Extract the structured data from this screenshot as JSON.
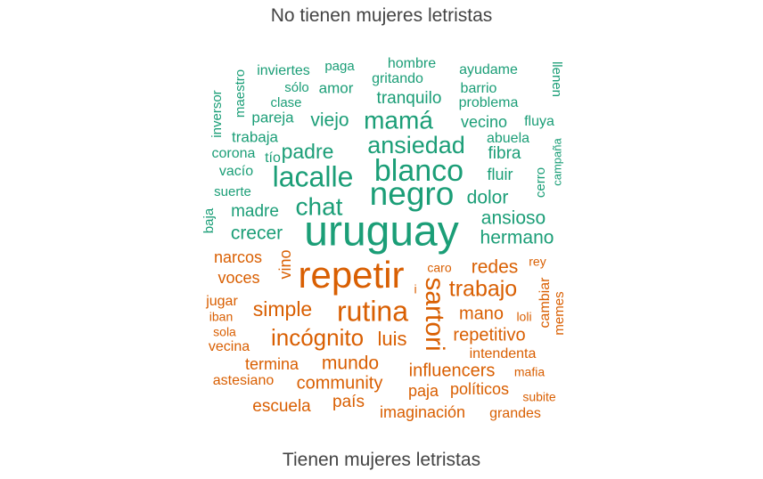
{
  "chart_data": {
    "type": "wordcloud",
    "title_top": "No tienen mujeres letristas",
    "title_bottom": "Tienen mujeres letristas",
    "colors": {
      "top_group": "#1B9E77",
      "bottom_group": "#D95F02"
    },
    "groups": [
      {
        "name": "No tienen mujeres letristas",
        "color": "#1B9E77",
        "words": [
          {
            "word": "uruguay",
            "weight": 10
          },
          {
            "word": "negro",
            "weight": 8
          },
          {
            "word": "blanco",
            "weight": 7.5
          },
          {
            "word": "lacalle",
            "weight": 7
          },
          {
            "word": "chat",
            "weight": 6
          },
          {
            "word": "mamá",
            "weight": 6
          },
          {
            "word": "ansiedad",
            "weight": 5.8
          },
          {
            "word": "padre",
            "weight": 5
          },
          {
            "word": "dolor",
            "weight": 4
          },
          {
            "word": "viejo",
            "weight": 4
          },
          {
            "word": "tranquilo",
            "weight": 4
          },
          {
            "word": "fibra",
            "weight": 3.8
          },
          {
            "word": "fluir",
            "weight": 3.7
          },
          {
            "word": "ansioso",
            "weight": 4
          },
          {
            "word": "hermano",
            "weight": 4
          },
          {
            "word": "crecer",
            "weight": 4
          },
          {
            "word": "madre",
            "weight": 3.7
          },
          {
            "word": "vecino",
            "weight": 3.6
          },
          {
            "word": "barrio",
            "weight": 3
          },
          {
            "word": "gritando",
            "weight": 3
          },
          {
            "word": "amor",
            "weight": 3.2
          },
          {
            "word": "ayudame",
            "weight": 3
          },
          {
            "word": "hombre",
            "weight": 3
          },
          {
            "word": "paga",
            "weight": 3
          },
          {
            "word": "inviertes",
            "weight": 3
          },
          {
            "word": "sólo",
            "weight": 3
          },
          {
            "word": "clase",
            "weight": 3
          },
          {
            "word": "problema",
            "weight": 3
          },
          {
            "word": "pareja",
            "weight": 3
          },
          {
            "word": "abuela",
            "weight": 3
          },
          {
            "word": "fluya",
            "weight": 3
          },
          {
            "word": "trabaja",
            "weight": 3
          },
          {
            "word": "corona",
            "weight": 3
          },
          {
            "word": "tío",
            "weight": 3
          },
          {
            "word": "vacío",
            "weight": 3
          },
          {
            "word": "suerte",
            "weight": 3
          },
          {
            "word": "baja",
            "weight": 3
          },
          {
            "word": "maestro",
            "weight": 3
          },
          {
            "word": "inversor",
            "weight": 3
          },
          {
            "word": "llenen",
            "weight": 3
          },
          {
            "word": "campaña",
            "weight": 2.8
          },
          {
            "word": "cerro",
            "weight": 3
          }
        ]
      },
      {
        "name": "Tienen mujeres letristas",
        "color": "#D95F02",
        "words": [
          {
            "word": "repetir",
            "weight": 10
          },
          {
            "word": "rutina",
            "weight": 7
          },
          {
            "word": "sartori",
            "weight": 7
          },
          {
            "word": "incógnito",
            "weight": 5.5
          },
          {
            "word": "trabajo",
            "weight": 5
          },
          {
            "word": "simple",
            "weight": 4.8
          },
          {
            "word": "luis",
            "weight": 4.8
          },
          {
            "word": "mano",
            "weight": 4
          },
          {
            "word": "redes",
            "weight": 4
          },
          {
            "word": "mundo",
            "weight": 4
          },
          {
            "word": "repetitivo",
            "weight": 4
          },
          {
            "word": "influencers",
            "weight": 4
          },
          {
            "word": "community",
            "weight": 4
          },
          {
            "word": "termina",
            "weight": 3.6
          },
          {
            "word": "narcos",
            "weight": 3.5
          },
          {
            "word": "voces",
            "weight": 3.5
          },
          {
            "word": "vino",
            "weight": 3.5
          },
          {
            "word": "escuela",
            "weight": 3.5
          },
          {
            "word": "país",
            "weight": 3.5
          },
          {
            "word": "imaginación",
            "weight": 3.5
          },
          {
            "word": "paja",
            "weight": 3.5
          },
          {
            "word": "políticos",
            "weight": 3.5
          },
          {
            "word": "intendenta",
            "weight": 3
          },
          {
            "word": "vecina",
            "weight": 3
          },
          {
            "word": "jugar",
            "weight": 3
          },
          {
            "word": "iban",
            "weight": 2.5
          },
          {
            "word": "sola",
            "weight": 2.5
          },
          {
            "word": "astesiano",
            "weight": 3
          },
          {
            "word": "grandes",
            "weight": 3
          },
          {
            "word": "subite",
            "weight": 2.8
          },
          {
            "word": "mafia",
            "weight": 2.8
          },
          {
            "word": "cambiar",
            "weight": 3
          },
          {
            "word": "memes",
            "weight": 3
          },
          {
            "word": "loli",
            "weight": 2.5
          },
          {
            "word": "caro",
            "weight": 2.5
          },
          {
            "word": "rey",
            "weight": 2.5
          },
          {
            "word": "i",
            "weight": 2.5
          }
        ]
      }
    ]
  }
}
